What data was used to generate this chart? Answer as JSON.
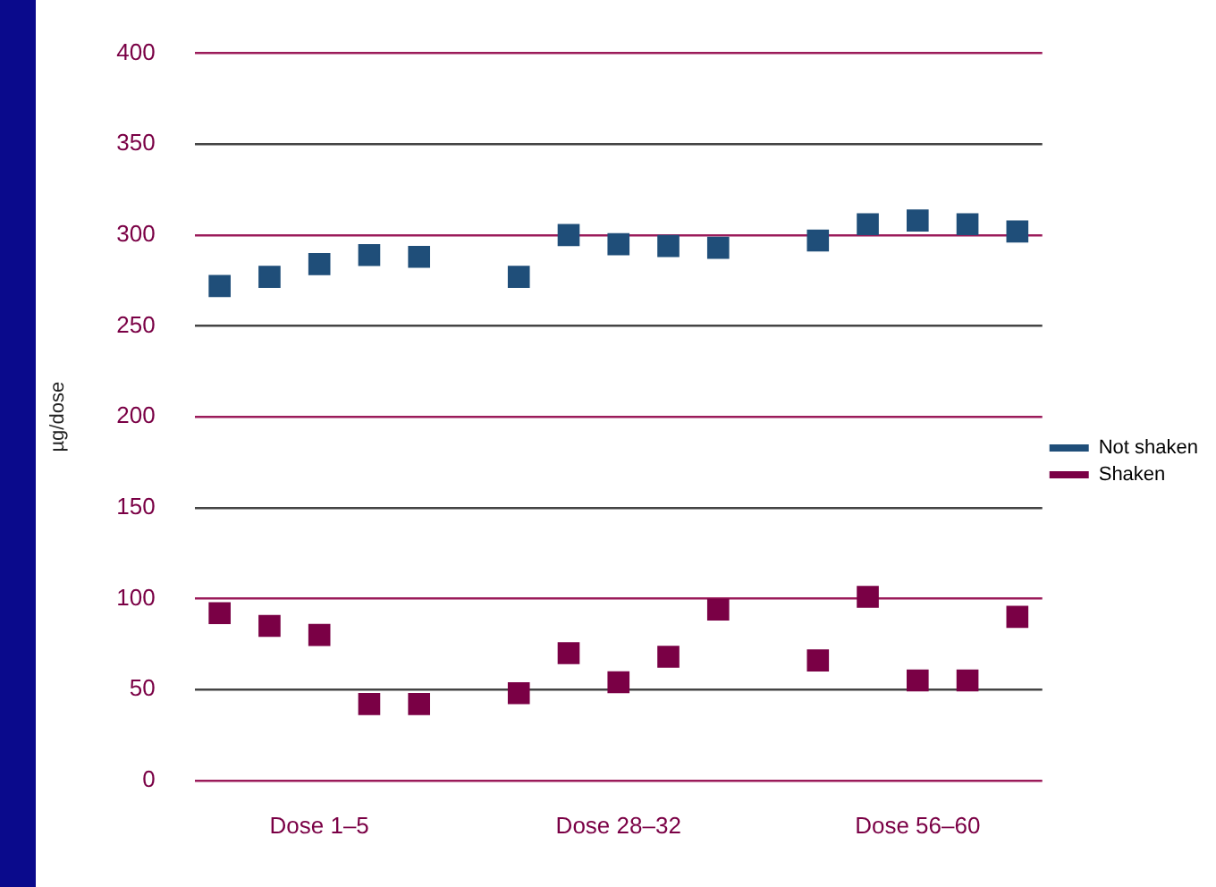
{
  "chart_data": {
    "type": "scatter",
    "ylabel": "µg/dose",
    "categories": [
      null,
      null,
      "Dose 1–5",
      null,
      null,
      null,
      null,
      null,
      "Dose 28–32",
      null,
      null,
      null,
      null,
      null,
      "Dose 56–60",
      null,
      null
    ],
    "ylim": [
      0,
      400
    ],
    "yticks": [
      0,
      50,
      100,
      150,
      200,
      250,
      300,
      350,
      400
    ],
    "grid": "y",
    "legend": "right",
    "marker": "square",
    "series": [
      {
        "name": "Not shaken",
        "color": "#1f4e79",
        "values": [
          272,
          277,
          284,
          289,
          288,
          null,
          277,
          300,
          295,
          294,
          293,
          null,
          297,
          306,
          308,
          306,
          302
        ]
      },
      {
        "name": "Shaken",
        "color": "#7a0045",
        "values": [
          92,
          85,
          80,
          42,
          42,
          null,
          48,
          70,
          54,
          68,
          94,
          null,
          66,
          101,
          55,
          55,
          90
        ]
      }
    ]
  }
}
